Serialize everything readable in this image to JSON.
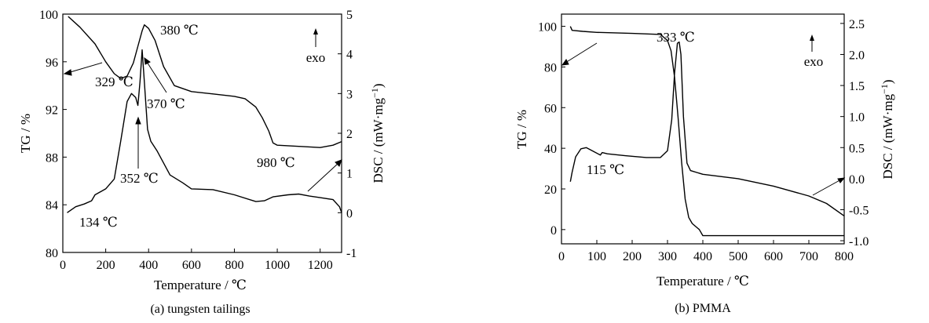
{
  "chart_data": [
    {
      "type": "line",
      "caption": "(a) tungsten tailings",
      "xlabel": "Temperature / ℃",
      "ylabel_left": "TG / %",
      "ylabel_right_main": "DSC / (mW·mg",
      "ylabel_right_sup": "−1",
      "ylabel_right_end": ")",
      "xlim": [
        0,
        1300
      ],
      "ylim_left": [
        80,
        100
      ],
      "ylim_right": [
        -1,
        5
      ],
      "xticks": [
        0,
        200,
        400,
        600,
        800,
        1000,
        1200
      ],
      "yticks_left": [
        80,
        84,
        88,
        92,
        96,
        100
      ],
      "yticks_right": [
        -1,
        0,
        1,
        2,
        3,
        4,
        5
      ],
      "exo_label": "exo",
      "series": [
        {
          "axis": "left",
          "x": [
            25,
            80,
            150,
            200,
            240,
            270,
            300,
            329,
            350,
            370,
            380,
            400,
            430,
            470,
            520,
            600,
            700,
            800,
            850,
            900,
            930,
            960,
            980,
            1000,
            1100,
            1200,
            1260,
            1300
          ],
          "y": [
            99.8,
            98.9,
            97.5,
            96.0,
            95.0,
            94.6,
            94.8,
            95.9,
            97.3,
            98.6,
            99.1,
            98.8,
            97.8,
            95.6,
            94.0,
            93.5,
            93.3,
            93.1,
            92.9,
            92.2,
            91.3,
            90.2,
            89.2,
            89.0,
            88.9,
            88.8,
            89.0,
            89.3
          ]
        },
        {
          "axis": "right",
          "x": [
            20,
            60,
            100,
            134,
            150,
            200,
            240,
            270,
            300,
            320,
            340,
            350,
            360,
            370,
            380,
            395,
            410,
            440,
            500,
            560,
            600,
            700,
            800,
            900,
            940,
            980,
            1050,
            1100,
            1150,
            1200,
            1260,
            1290,
            1300
          ],
          "y": [
            0.0,
            0.15,
            0.22,
            0.3,
            0.45,
            0.6,
            0.85,
            1.8,
            2.8,
            3.0,
            2.9,
            2.7,
            3.3,
            4.1,
            3.3,
            2.1,
            1.8,
            1.55,
            0.95,
            0.75,
            0.6,
            0.58,
            0.45,
            0.28,
            0.3,
            0.4,
            0.45,
            0.47,
            0.42,
            0.38,
            0.33,
            0.15,
            0.0
          ]
        }
      ],
      "annotations": [
        "380 ℃",
        "329 ℃",
        "370 ℃",
        "352 ℃",
        "134 ℃",
        "980 ℃"
      ]
    },
    {
      "type": "line",
      "caption": "(b) PMMA",
      "xlabel": "Temperature / ℃",
      "ylabel_left": "TG / %",
      "ylabel_right_main": "DSC / (mW·mg",
      "ylabel_right_sup": "−1",
      "ylabel_right_end": ")",
      "xlim": [
        0,
        800
      ],
      "ylim_left": [
        -7,
        106
      ],
      "ylim_right": [
        -1.05,
        2.65
      ],
      "xticks": [
        0,
        100,
        200,
        300,
        400,
        500,
        600,
        700,
        800
      ],
      "yticks_left": [
        0,
        20,
        40,
        60,
        80,
        100
      ],
      "yticks_right": [
        "-1.0",
        "-0.5",
        "0.0",
        "0.5",
        "1.0",
        "1.5",
        "2.0",
        "2.5"
      ],
      "exo_label": "exo",
      "series": [
        {
          "axis": "left",
          "x": [
            25,
            30,
            60,
            100,
            200,
            280,
            300,
            310,
            320,
            330,
            340,
            350,
            360,
            370,
            380,
            390,
            400,
            500,
            600,
            700,
            800
          ],
          "y": [
            100,
            98,
            97.5,
            97,
            96.5,
            96,
            93,
            88,
            75,
            55,
            33,
            15,
            6,
            3,
            1.5,
            0,
            -3,
            -3,
            -3,
            -3,
            -3
          ]
        },
        {
          "axis": "right",
          "x": [
            25,
            30,
            40,
            55,
            70,
            90,
            110,
            115,
            130,
            180,
            240,
            280,
            300,
            312,
            320,
            328,
            333,
            338,
            345,
            355,
            365,
            400,
            500,
            600,
            700,
            750,
            800
          ],
          "y": [
            -0.05,
            0.1,
            0.35,
            0.48,
            0.5,
            0.44,
            0.38,
            0.42,
            0.4,
            0.37,
            0.34,
            0.34,
            0.45,
            0.95,
            1.7,
            2.18,
            2.2,
            2.0,
            1.0,
            0.25,
            0.13,
            0.07,
            0.0,
            -0.12,
            -0.28,
            -0.4,
            -0.6
          ]
        }
      ],
      "annotations": [
        "333 ℃",
        "115 ℃"
      ]
    }
  ]
}
